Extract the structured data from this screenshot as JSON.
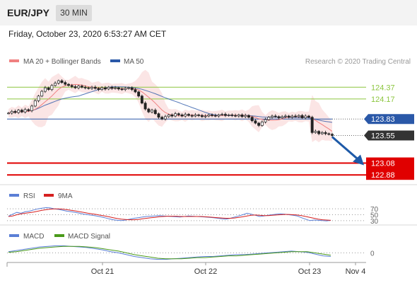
{
  "header": {
    "symbol": "EUR/JPY",
    "timeframe": "30 MIN",
    "datetime": "Friday, October 23, 2020 6:53:27 AM CET"
  },
  "colors": {
    "bollinger": "#f08080",
    "bollinger_band_fill": "#fadcdc",
    "ma50": "#2a58a8",
    "level_green": "#8cc63f",
    "level_blue": "#2a58a8",
    "level_red": "#e00000",
    "price_tag": "#333333",
    "rsi": "#5b7fd6",
    "rsi_9ma": "#d62020",
    "macd": "#5b7fd6",
    "macd_signal": "#4a9a1a",
    "arrow": "#1e5aa8"
  },
  "chart_data": [
    {
      "type": "candlestick",
      "name": "price",
      "legend": [
        {
          "label": "MA 20 + Bollinger Bands",
          "color": "#f08080"
        },
        {
          "label": "MA 50",
          "color": "#2a58a8"
        }
      ],
      "credit": "Research © 2020 Trading Central",
      "ylim": [
        122.75,
        124.65
      ],
      "close": [
        123.93,
        123.96,
        123.94,
        123.98,
        123.95,
        123.99,
        123.97,
        124.05,
        124.14,
        124.22,
        124.3,
        124.36,
        124.33,
        124.4,
        124.44,
        124.48,
        124.45,
        124.42,
        124.4,
        124.38,
        124.36,
        124.39,
        124.37,
        124.36,
        124.35,
        124.37,
        124.35,
        124.33,
        124.36,
        124.34,
        124.37,
        124.35,
        124.36,
        124.34,
        124.33,
        124.35,
        124.36,
        124.33,
        124.29,
        124.22,
        124.1,
        124.0,
        123.95,
        123.98,
        123.92,
        123.86,
        123.83,
        123.87,
        123.9,
        123.88,
        123.92,
        123.9,
        123.88,
        123.91,
        123.89,
        123.88,
        123.9,
        123.89,
        123.87,
        123.88,
        123.9,
        123.89,
        123.88,
        123.9,
        123.91,
        123.89,
        123.9,
        123.89,
        123.88,
        123.9,
        123.87,
        123.89,
        123.86,
        123.8,
        123.76,
        123.72,
        123.78,
        123.82,
        123.86,
        123.88,
        123.87,
        123.85,
        123.87,
        123.88,
        123.86,
        123.88,
        123.87,
        123.89,
        123.85,
        123.88,
        123.86,
        123.6,
        123.62,
        123.58,
        123.6,
        123.58,
        123.57,
        123.55
      ],
      "levels": [
        {
          "value": "124.37",
          "style": "resistance"
        },
        {
          "value": "124.17",
          "style": "resistance"
        },
        {
          "value": "123.83",
          "style": "pivot"
        },
        {
          "value": "123.55",
          "style": "last-price"
        },
        {
          "value": "123.08",
          "style": "target"
        },
        {
          "value": "122.88",
          "style": "target"
        }
      ],
      "forecast_arrow": {
        "from": 123.55,
        "to": 123.08
      }
    },
    {
      "type": "line",
      "name": "RSI",
      "legend": [
        {
          "label": "RSI",
          "color": "#5b7fd6"
        },
        {
          "label": "9MA",
          "color": "#d62020"
        }
      ],
      "ylim": [
        20,
        80
      ],
      "reference_levels": [
        "70",
        "50",
        "30"
      ],
      "rsi": [
        45,
        52,
        58,
        55,
        60,
        62,
        66,
        70,
        72,
        74,
        73,
        70,
        68,
        65,
        62,
        60,
        58,
        55,
        52,
        50,
        48,
        46,
        43,
        40,
        36,
        33,
        31,
        30,
        32,
        35,
        38,
        40,
        42,
        44,
        45,
        46,
        47,
        46,
        45,
        44,
        43,
        42,
        44,
        46,
        45,
        44,
        43,
        42,
        41,
        40,
        38,
        36,
        35,
        38,
        42,
        46,
        50,
        55,
        52,
        48,
        44,
        46,
        48,
        50,
        52,
        53,
        52,
        50,
        48,
        46,
        40,
        35,
        30,
        32,
        31,
        30,
        29,
        31
      ],
      "ma9": [
        44,
        46,
        50,
        53,
        55,
        57,
        59,
        62,
        65,
        67,
        69,
        70,
        70,
        69,
        67,
        65,
        63,
        60,
        58,
        55,
        53,
        51,
        48,
        46,
        43,
        40,
        37,
        35,
        34,
        33,
        33,
        34,
        36,
        38,
        40,
        41,
        43,
        44,
        45,
        45,
        45,
        44,
        44,
        44,
        44,
        44,
        44,
        43,
        42,
        41,
        40,
        39,
        38,
        38,
        39,
        41,
        43,
        46,
        48,
        49,
        48,
        47,
        47,
        48,
        49,
        50,
        51,
        51,
        50,
        49,
        47,
        44,
        41,
        38,
        35,
        33,
        32,
        31
      ]
    },
    {
      "type": "line",
      "name": "MACD",
      "legend": [
        {
          "label": "MACD",
          "color": "#5b7fd6"
        },
        {
          "label": "MACD Signal",
          "color": "#4a9a1a"
        }
      ],
      "ylim": [
        -0.15,
        0.16
      ],
      "reference_levels": [
        "0"
      ],
      "macd": [
        0.02,
        0.04,
        0.06,
        0.08,
        0.1,
        0.11,
        0.12,
        0.12,
        0.11,
        0.1,
        0.09,
        0.07,
        0.05,
        0.02,
        0.0,
        -0.03,
        -0.06,
        -0.08,
        -0.1,
        -0.11,
        -0.11,
        -0.1,
        -0.09,
        -0.08,
        -0.07,
        -0.06,
        -0.06,
        -0.05,
        -0.04,
        -0.03,
        -0.03,
        -0.02,
        -0.01,
        0.0,
        0.01,
        0.02,
        0.03,
        0.02,
        0.01,
        -0.02,
        -0.05,
        -0.06
      ],
      "signal": [
        0.01,
        0.02,
        0.04,
        0.06,
        0.08,
        0.09,
        0.1,
        0.11,
        0.11,
        0.11,
        0.1,
        0.09,
        0.07,
        0.05,
        0.03,
        0.0,
        -0.03,
        -0.05,
        -0.07,
        -0.09,
        -0.1,
        -0.1,
        -0.1,
        -0.09,
        -0.08,
        -0.08,
        -0.07,
        -0.06,
        -0.05,
        -0.05,
        -0.04,
        -0.03,
        -0.02,
        -0.01,
        0.0,
        0.01,
        0.02,
        0.02,
        0.02,
        0.0,
        -0.02,
        -0.04
      ],
      "x_ticks": [
        "Oct 21",
        "Oct 22",
        "Oct 23",
        "Nov 4"
      ]
    }
  ]
}
